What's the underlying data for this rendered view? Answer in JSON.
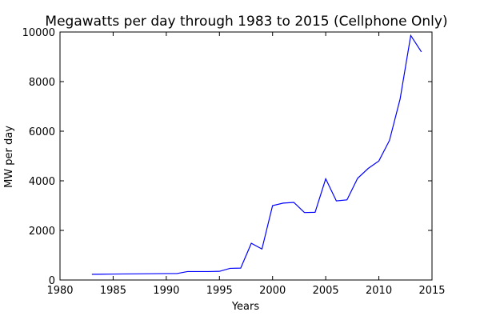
{
  "chart_data": {
    "type": "line",
    "title": "Megawatts per day through 1983 to 2015 (Cellphone Only)",
    "xlabel": "Years",
    "ylabel": "MW per day",
    "xlim": [
      1980,
      2015
    ],
    "ylim": [
      0,
      10000
    ],
    "xticks": [
      1980,
      1985,
      1990,
      1995,
      2000,
      2005,
      2010,
      2015
    ],
    "yticks": [
      0,
      2000,
      4000,
      6000,
      8000,
      10000
    ],
    "grid": false,
    "line_color": "#0000ff",
    "series": [
      {
        "x": [
          1983,
          1985,
          1990,
          1991,
          1992,
          1993,
          1994,
          1995,
          1996,
          1997,
          1998,
          1999,
          2000,
          2001,
          2002,
          2003,
          2004,
          2005,
          2006,
          2007,
          2008,
          2009,
          2010,
          2011,
          2012,
          2013,
          2014
        ],
        "y": [
          230,
          240,
          260,
          260,
          340,
          340,
          340,
          350,
          470,
          480,
          1480,
          1250,
          3000,
          3100,
          3130,
          2720,
          2730,
          4080,
          3190,
          3230,
          4100,
          4500,
          4800,
          5630,
          7300,
          9860,
          9200
        ]
      }
    ]
  }
}
